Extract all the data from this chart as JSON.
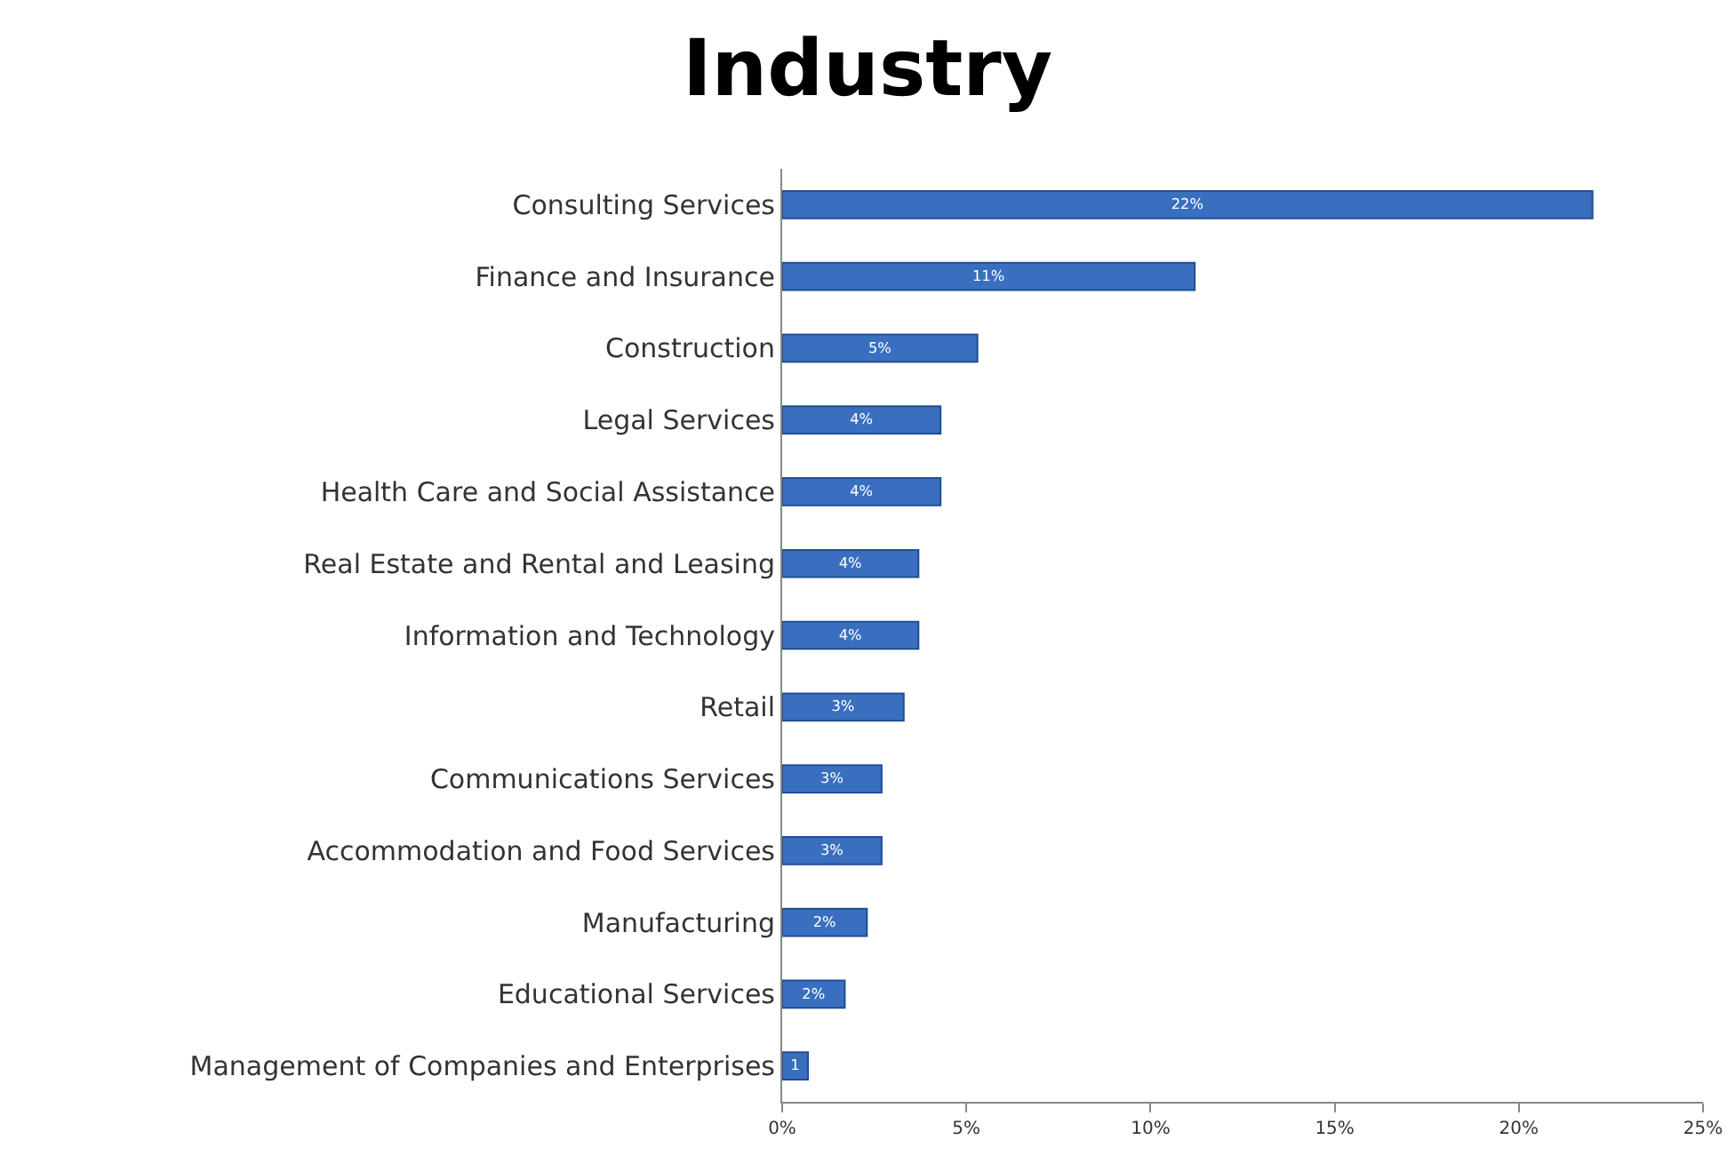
{
  "chart_data": {
    "type": "bar",
    "title": "Industry",
    "orientation": "horizontal",
    "categories": [
      "Consulting Services",
      "Finance and Insurance",
      "Construction",
      "Legal Services",
      "Health Care and Social Assistance",
      "Real Estate and Rental and Leasing",
      "Information and Technology",
      "Retail",
      "Communications Services",
      "Accommodation and Food Services",
      "Manufacturing",
      "Educational Services",
      "Management of Companies and Enterprises"
    ],
    "values": [
      22.0,
      11.2,
      5.3,
      4.3,
      4.3,
      3.7,
      3.7,
      3.3,
      2.7,
      2.7,
      2.3,
      1.7,
      0.7
    ],
    "value_labels": [
      "22%",
      "11%",
      "5%",
      "4%",
      "4%",
      "4%",
      "4%",
      "3%",
      "3%",
      "3%",
      "2%",
      "2%",
      "1"
    ],
    "color": "#3a6fc0",
    "xlim": [
      0,
      25
    ],
    "xticks": [
      {
        "value": 0,
        "label": "0%"
      },
      {
        "value": 5,
        "label": "5%"
      },
      {
        "value": 10,
        "label": "10%"
      },
      {
        "value": 15,
        "label": "15%"
      },
      {
        "value": 20,
        "label": "20%"
      },
      {
        "value": 25,
        "label": "25%"
      }
    ],
    "grid": false,
    "legend": false
  }
}
